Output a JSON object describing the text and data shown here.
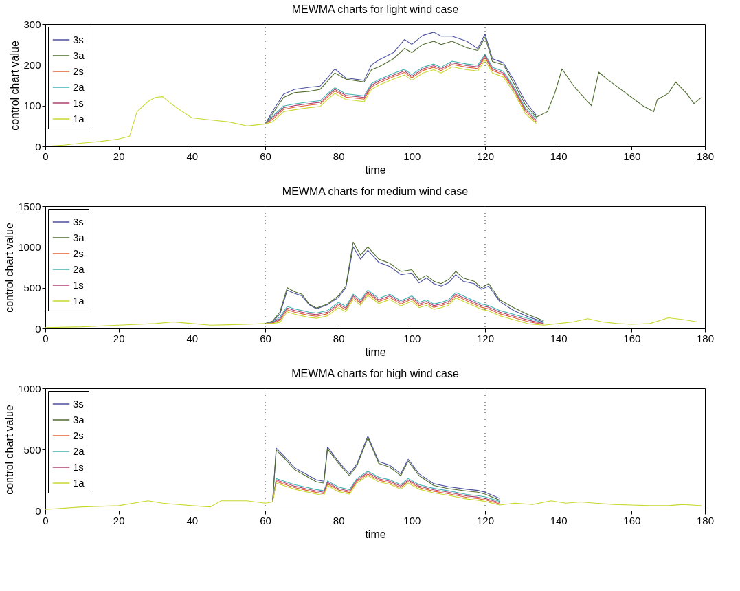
{
  "chart_data": [
    {
      "type": "line",
      "title": "MEWMA charts for light wind case",
      "xlabel": "time",
      "ylabel": "control chart value",
      "x": [
        0,
        5,
        10,
        15,
        20,
        23,
        25,
        28,
        30,
        32,
        35,
        40,
        45,
        50,
        55,
        60,
        62,
        65,
        68,
        72,
        75,
        77,
        79,
        82,
        87,
        89,
        91,
        95,
        98,
        100,
        103,
        106,
        108,
        111,
        115,
        118,
        120,
        122,
        125,
        128,
        131,
        134,
        137,
        139,
        141,
        144,
        147,
        149,
        151,
        154,
        157,
        160,
        163,
        166,
        167,
        170,
        172,
        175,
        177,
        179
      ],
      "xlim": [
        0,
        180
      ],
      "xticks": [
        0,
        20,
        40,
        60,
        80,
        100,
        120,
        140,
        160,
        180
      ],
      "ylim": [
        0,
        300
      ],
      "yticks": [
        0,
        100,
        200,
        300
      ],
      "grid": false,
      "legend": "top left",
      "line_style": "solid",
      "marker": "none",
      "ref_lines": [
        {
          "axis": "x",
          "value": 60,
          "color": "#333333",
          "line_style": "dotted"
        },
        {
          "axis": "x",
          "value": 120,
          "color": "#333333",
          "line_style": "dotted"
        }
      ],
      "series": [
        {
          "name": "3s",
          "color": "#4b4fa0",
          "values": [
            null,
            null,
            null,
            null,
            null,
            null,
            null,
            null,
            null,
            null,
            null,
            null,
            null,
            null,
            null,
            55,
            86,
            128,
            140,
            145,
            148,
            168,
            190,
            168,
            162,
            200,
            212,
            230,
            262,
            250,
            272,
            280,
            270,
            270,
            258,
            240,
            275,
            215,
            205,
            160,
            110,
            76,
            null,
            null,
            null,
            null,
            null,
            null,
            null,
            null,
            null,
            null,
            null,
            null,
            null,
            null,
            null,
            null,
            null,
            null
          ]
        },
        {
          "name": "3a",
          "color": "#4f6b2e",
          "values": [
            null,
            null,
            null,
            null,
            null,
            null,
            null,
            null,
            null,
            null,
            null,
            null,
            null,
            null,
            null,
            55,
            80,
            120,
            132,
            135,
            140,
            160,
            180,
            165,
            158,
            188,
            195,
            215,
            240,
            230,
            250,
            258,
            250,
            258,
            242,
            235,
            268,
            208,
            200,
            152,
            102,
            72,
            85,
            130,
            190,
            150,
            120,
            100,
            182,
            160,
            140,
            120,
            100,
            85,
            115,
            130,
            158,
            130,
            105,
            120
          ]
        },
        {
          "name": "2s",
          "color": "#e06030",
          "values": [
            null,
            null,
            null,
            null,
            null,
            null,
            null,
            null,
            null,
            null,
            null,
            null,
            null,
            null,
            null,
            55,
            66,
            91,
            96,
            101,
            104,
            121,
            136,
            121,
            116,
            146,
            156,
            171,
            181,
            168,
            186,
            194,
            186,
            201,
            194,
            191,
            218,
            186,
            176,
            136,
            86,
            60,
            null,
            null,
            null,
            null,
            null,
            null,
            null,
            null,
            null,
            null,
            null,
            null,
            null,
            null,
            null,
            null,
            null,
            null
          ]
        },
        {
          "name": "2a",
          "color": "#40b0b0",
          "values": [
            null,
            null,
            null,
            null,
            null,
            null,
            null,
            null,
            null,
            null,
            null,
            null,
            null,
            null,
            null,
            55,
            74,
            99,
            104,
            109,
            112,
            129,
            144,
            129,
            124,
            154,
            164,
            179,
            189,
            176,
            194,
            202,
            194,
            209,
            202,
            199,
            226,
            194,
            184,
            144,
            94,
            68,
            null,
            null,
            null,
            null,
            null,
            null,
            null,
            null,
            null,
            null,
            null,
            null,
            null,
            null,
            null,
            null,
            null,
            null
          ]
        },
        {
          "name": "1s",
          "color": "#b04070",
          "values": [
            null,
            null,
            null,
            null,
            null,
            null,
            null,
            null,
            null,
            null,
            null,
            null,
            null,
            null,
            null,
            55,
            70,
            95,
            100,
            105,
            108,
            125,
            140,
            125,
            120,
            150,
            160,
            175,
            185,
            172,
            190,
            198,
            190,
            205,
            198,
            195,
            222,
            190,
            180,
            140,
            90,
            64,
            null,
            null,
            null,
            null,
            null,
            null,
            null,
            null,
            null,
            null,
            null,
            null,
            null,
            null,
            null,
            null,
            null,
            null
          ]
        },
        {
          "name": "1a",
          "color": "#c8d830",
          "values": [
            0,
            3,
            8,
            12,
            18,
            25,
            85,
            110,
            120,
            122,
            100,
            70,
            65,
            60,
            50,
            55,
            60,
            85,
            90,
            95,
            98,
            115,
            130,
            115,
            110,
            140,
            150,
            165,
            175,
            162,
            180,
            188,
            180,
            195,
            188,
            185,
            212,
            180,
            170,
            130,
            80,
            56,
            null,
            null,
            null,
            null,
            null,
            null,
            null,
            null,
            null,
            null,
            null,
            null,
            null,
            null,
            null,
            null,
            null,
            null
          ]
        }
      ]
    },
    {
      "type": "line",
      "title": "MEWMA charts for medium wind case",
      "xlabel": "time",
      "ylabel": "control chart value",
      "x": [
        0,
        10,
        20,
        30,
        35,
        40,
        45,
        50,
        55,
        60,
        62,
        64,
        66,
        68,
        70,
        72,
        74,
        77,
        80,
        82,
        84,
        86,
        88,
        91,
        94,
        97,
        100,
        102,
        104,
        106,
        108,
        110,
        112,
        114,
        117,
        119,
        121,
        124,
        128,
        132,
        136,
        140,
        144,
        148,
        152,
        156,
        160,
        165,
        170,
        174,
        178
      ],
      "xlim": [
        0,
        180
      ],
      "xticks": [
        0,
        20,
        40,
        60,
        80,
        100,
        120,
        140,
        160,
        180
      ],
      "ylim": [
        0,
        1500
      ],
      "yticks": [
        0,
        500,
        1000,
        1500
      ],
      "grid": false,
      "legend": "top left",
      "line_style": "solid",
      "marker": "none",
      "ref_lines": [
        {
          "axis": "x",
          "value": 60,
          "color": "#333333",
          "line_style": "dotted"
        },
        {
          "axis": "x",
          "value": 120,
          "color": "#333333",
          "line_style": "dotted"
        }
      ],
      "series": [
        {
          "name": "3s",
          "color": "#4b4fa0",
          "values": [
            null,
            null,
            null,
            null,
            null,
            null,
            null,
            null,
            null,
            60,
            80,
            175,
            470,
            430,
            400,
            290,
            240,
            290,
            380,
            500,
            1000,
            850,
            960,
            810,
            760,
            660,
            680,
            560,
            620,
            550,
            520,
            560,
            660,
            580,
            550,
            480,
            520,
            330,
            215,
            140,
            80,
            null,
            null,
            null,
            null,
            null,
            null,
            null,
            null,
            null,
            null
          ]
        },
        {
          "name": "3a",
          "color": "#4f6b2e",
          "values": [
            null,
            null,
            null,
            null,
            null,
            null,
            null,
            null,
            null,
            60,
            90,
            200,
            500,
            450,
            420,
            300,
            250,
            300,
            400,
            520,
            1060,
            900,
            1000,
            850,
            800,
            700,
            720,
            600,
            650,
            580,
            550,
            600,
            700,
            620,
            580,
            500,
            550,
            350,
            250,
            165,
            95,
            null,
            null,
            null,
            null,
            null,
            null,
            null,
            null,
            null,
            null
          ]
        },
        {
          "name": "2s",
          "color": "#e06030",
          "values": [
            null,
            null,
            null,
            null,
            null,
            null,
            null,
            null,
            null,
            60,
            65,
            100,
            230,
            200,
            180,
            160,
            150,
            180,
            280,
            230,
            380,
            310,
            430,
            330,
            380,
            300,
            360,
            280,
            310,
            260,
            280,
            310,
            400,
            360,
            300,
            260,
            240,
            180,
            130,
            80,
            50,
            null,
            null,
            null,
            null,
            null,
            null,
            null,
            null,
            null,
            null
          ]
        },
        {
          "name": "2a",
          "color": "#40b0b0",
          "values": [
            null,
            null,
            null,
            null,
            null,
            null,
            null,
            null,
            null,
            60,
            75,
            140,
            270,
            240,
            220,
            200,
            190,
            220,
            320,
            270,
            420,
            350,
            470,
            370,
            420,
            340,
            400,
            320,
            350,
            300,
            320,
            350,
            440,
            400,
            340,
            300,
            280,
            220,
            170,
            120,
            70,
            null,
            null,
            null,
            null,
            null,
            null,
            null,
            null,
            null,
            null
          ]
        },
        {
          "name": "1s",
          "color": "#b04070",
          "values": [
            null,
            null,
            null,
            null,
            null,
            null,
            null,
            null,
            null,
            60,
            70,
            120,
            250,
            220,
            200,
            180,
            170,
            200,
            300,
            250,
            400,
            330,
            450,
            350,
            400,
            320,
            380,
            300,
            330,
            280,
            300,
            330,
            420,
            380,
            320,
            280,
            260,
            200,
            150,
            100,
            60,
            null,
            null,
            null,
            null,
            null,
            null,
            null,
            null,
            null,
            null
          ]
        },
        {
          "name": "1a",
          "color": "#c8d830",
          "values": [
            10,
            20,
            40,
            60,
            80,
            60,
            40,
            45,
            50,
            60,
            60,
            75,
            205,
            175,
            155,
            135,
            125,
            155,
            255,
            205,
            355,
            285,
            405,
            305,
            355,
            275,
            335,
            255,
            285,
            235,
            255,
            285,
            375,
            335,
            275,
            235,
            215,
            155,
            105,
            55,
            40,
            60,
            80,
            120,
            80,
            60,
            50,
            60,
            130,
            110,
            80
          ]
        }
      ]
    },
    {
      "type": "line",
      "title": "MEWMA charts for high wind case",
      "xlabel": "time",
      "ylabel": "control chart value",
      "x": [
        0,
        10,
        20,
        28,
        32,
        40,
        45,
        48,
        55,
        60,
        62,
        63,
        65,
        68,
        71,
        74,
        76,
        77,
        80,
        83,
        85,
        88,
        91,
        94,
        97,
        99,
        102,
        106,
        110,
        115,
        118,
        120,
        124,
        128,
        133,
        138,
        142,
        146,
        150,
        155,
        160,
        165,
        170,
        174,
        179
      ],
      "xlim": [
        0,
        180
      ],
      "xticks": [
        0,
        20,
        40,
        60,
        80,
        100,
        120,
        140,
        160,
        180
      ],
      "ylim": [
        0,
        1000
      ],
      "yticks": [
        0,
        500,
        1000
      ],
      "grid": false,
      "legend": "top left",
      "line_style": "solid",
      "marker": "none",
      "ref_lines": [
        {
          "axis": "x",
          "value": 60,
          "color": "#333333",
          "line_style": "dotted"
        },
        {
          "axis": "x",
          "value": 120,
          "color": "#333333",
          "line_style": "dotted"
        }
      ],
      "series": [
        {
          "name": "3s",
          "color": "#4b4fa0",
          "values": [
            null,
            null,
            null,
            null,
            null,
            null,
            null,
            null,
            null,
            null,
            70,
            510,
            450,
            350,
            300,
            250,
            240,
            520,
            400,
            300,
            380,
            610,
            400,
            370,
            300,
            420,
            300,
            220,
            195,
            175,
            165,
            150,
            100,
            null,
            null,
            null,
            null,
            null,
            null,
            null,
            null,
            null,
            null,
            null,
            null
          ]
        },
        {
          "name": "3a",
          "color": "#4f6b2e",
          "values": [
            null,
            null,
            null,
            null,
            null,
            null,
            null,
            null,
            null,
            null,
            70,
            495,
            435,
            335,
            285,
            235,
            225,
            505,
            385,
            285,
            365,
            595,
            385,
            355,
            285,
            405,
            285,
            205,
            180,
            160,
            150,
            135,
            85,
            null,
            null,
            null,
            null,
            null,
            null,
            null,
            null,
            null,
            null,
            null,
            null
          ]
        },
        {
          "name": "2s",
          "color": "#e06030",
          "values": [
            null,
            null,
            null,
            null,
            null,
            null,
            null,
            null,
            null,
            null,
            70,
            238,
            218,
            188,
            168,
            148,
            138,
            218,
            168,
            148,
            238,
            298,
            248,
            228,
            188,
            238,
            188,
            158,
            138,
            108,
            98,
            88,
            55,
            null,
            null,
            null,
            null,
            null,
            null,
            null,
            null,
            null,
            null,
            null,
            null
          ]
        },
        {
          "name": "2a",
          "color": "#40b0b0",
          "values": [
            null,
            null,
            null,
            null,
            null,
            null,
            null,
            null,
            null,
            null,
            70,
            262,
            242,
            212,
            192,
            172,
            162,
            242,
            192,
            172,
            262,
            322,
            272,
            252,
            212,
            262,
            212,
            182,
            162,
            132,
            122,
            112,
            75,
            null,
            null,
            null,
            null,
            null,
            null,
            null,
            null,
            null,
            null,
            null,
            null
          ]
        },
        {
          "name": "1s",
          "color": "#b04070",
          "values": [
            null,
            null,
            null,
            null,
            null,
            null,
            null,
            null,
            null,
            null,
            70,
            250,
            230,
            200,
            180,
            160,
            150,
            230,
            180,
            160,
            250,
            310,
            260,
            240,
            200,
            250,
            200,
            170,
            150,
            120,
            110,
            100,
            65,
            null,
            null,
            null,
            null,
            null,
            null,
            null,
            null,
            null,
            null,
            null,
            null
          ]
        },
        {
          "name": "1a",
          "color": "#c8d830",
          "values": [
            10,
            30,
            40,
            80,
            60,
            40,
            30,
            80,
            80,
            60,
            70,
            225,
            205,
            175,
            155,
            135,
            125,
            205,
            155,
            135,
            225,
            285,
            235,
            215,
            175,
            225,
            175,
            145,
            125,
            95,
            85,
            75,
            45,
            60,
            50,
            80,
            60,
            70,
            60,
            50,
            45,
            40,
            40,
            50,
            40
          ]
        }
      ]
    }
  ]
}
